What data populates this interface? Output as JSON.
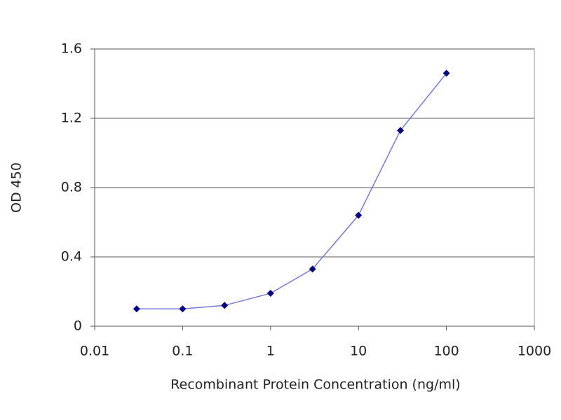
{
  "chart_data": {
    "type": "line",
    "xlabel": "Recombinant Protein Concentration (ng/ml)",
    "ylabel": "OD 450",
    "x": [
      0.03,
      0.1,
      0.3,
      1,
      3,
      10,
      30,
      100
    ],
    "series": [
      {
        "color": "#000080",
        "line_color": "#7878d8",
        "values": [
          0.1,
          0.1,
          0.12,
          0.19,
          0.33,
          0.64,
          1.13,
          1.46
        ]
      }
    ],
    "xscale": "log",
    "xlim": [
      0.01,
      1000
    ],
    "xticks": [
      0.01,
      0.1,
      1,
      10,
      100,
      1000
    ],
    "ylim": [
      0,
      1.6
    ],
    "yticks": [
      0,
      0.4,
      0.8,
      1.2,
      1.6
    ],
    "grid": true
  }
}
